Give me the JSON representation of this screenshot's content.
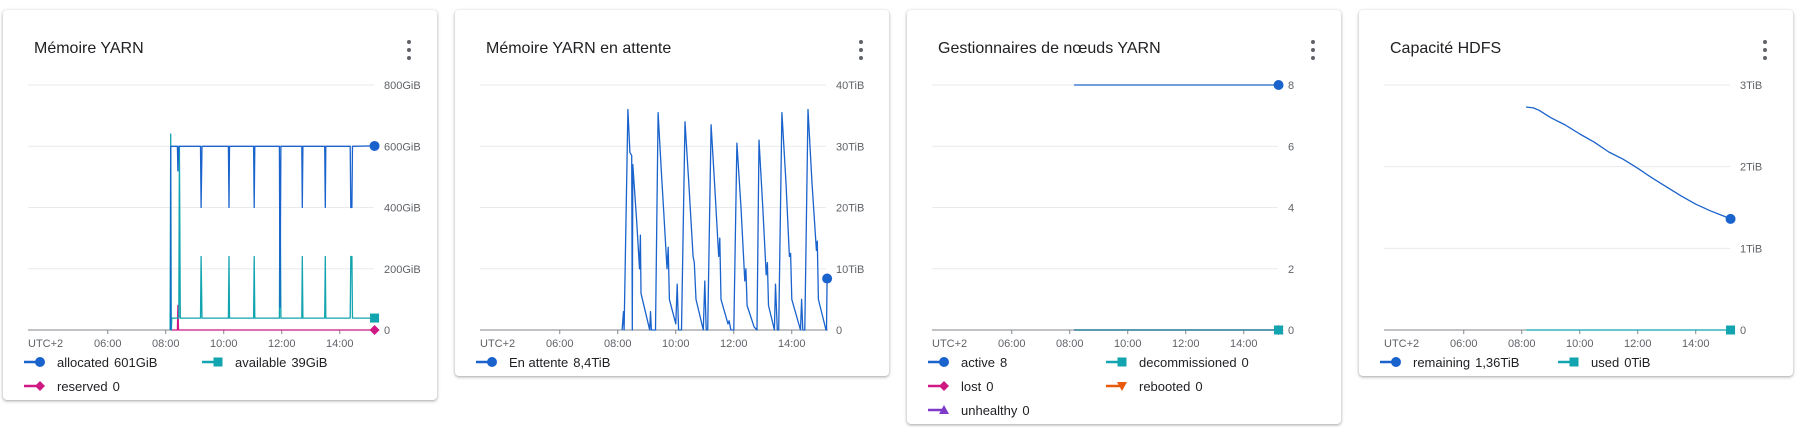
{
  "chart_data": [
    {
      "type": "line",
      "title": "Mémoire YARN",
      "timezone_label": "UTC+2",
      "xlim": [
        3.25,
        15.25
      ],
      "x_ticks": [
        {
          "v": 6,
          "label": "06:00"
        },
        {
          "v": 8,
          "label": "08:00"
        },
        {
          "v": 10,
          "label": "10:00"
        },
        {
          "v": 12,
          "label": "12:00"
        },
        {
          "v": 14,
          "label": "14:00"
        }
      ],
      "ylim": [
        0,
        800
      ],
      "y_ticks": [
        {
          "v": 0,
          "label": "0"
        },
        {
          "v": 200,
          "label": "200GiB"
        },
        {
          "v": 400,
          "label": "400GiB"
        },
        {
          "v": 600,
          "label": "600GiB"
        },
        {
          "v": 800,
          "label": "800GiB"
        }
      ],
      "series": [
        {
          "name": "allocated",
          "value": "601GiB",
          "color": "#1a63cc",
          "marker": "circle",
          "points": [
            [
              8.17,
              0
            ],
            [
              8.17,
              600
            ],
            [
              8.4,
              600
            ],
            [
              8.42,
              520
            ],
            [
              8.45,
              600
            ],
            [
              9.2,
              600
            ],
            [
              9.22,
              400
            ],
            [
              9.25,
              600
            ],
            [
              10.16,
              600
            ],
            [
              10.18,
              400
            ],
            [
              10.2,
              600
            ],
            [
              11.03,
              600
            ],
            [
              11.05,
              400
            ],
            [
              11.07,
              600
            ],
            [
              11.92,
              600
            ],
            [
              11.94,
              75
            ],
            [
              11.97,
              600
            ],
            [
              12.69,
              600
            ],
            [
              12.71,
              400
            ],
            [
              12.73,
              600
            ],
            [
              13.48,
              600
            ],
            [
              13.5,
              400
            ],
            [
              13.52,
              600
            ],
            [
              14.36,
              600
            ],
            [
              14.38,
              400
            ],
            [
              14.42,
              400
            ],
            [
              14.44,
              600
            ],
            [
              15.2,
              601
            ]
          ]
        },
        {
          "name": "available",
          "value": "39GiB",
          "color": "#12a4af",
          "marker": "square",
          "points": [
            [
              8.15,
              0
            ],
            [
              8.17,
              640
            ],
            [
              8.19,
              0
            ],
            [
              8.21,
              39
            ],
            [
              8.45,
              39
            ],
            [
              8.47,
              600
            ],
            [
              8.5,
              39
            ],
            [
              9.2,
              39
            ],
            [
              9.22,
              240
            ],
            [
              9.25,
              39
            ],
            [
              10.16,
              39
            ],
            [
              10.18,
              240
            ],
            [
              10.2,
              39
            ],
            [
              11.03,
              39
            ],
            [
              11.05,
              240
            ],
            [
              11.07,
              39
            ],
            [
              11.92,
              39
            ],
            [
              11.94,
              555
            ],
            [
              11.97,
              39
            ],
            [
              12.69,
              39
            ],
            [
              12.71,
              240
            ],
            [
              12.73,
              39
            ],
            [
              13.48,
              39
            ],
            [
              13.5,
              240
            ],
            [
              13.52,
              39
            ],
            [
              14.36,
              39
            ],
            [
              14.38,
              240
            ],
            [
              14.42,
              240
            ],
            [
              14.44,
              39
            ],
            [
              15.2,
              39
            ]
          ]
        },
        {
          "name": "reserved",
          "value": "0",
          "color": "#d01884",
          "marker": "diamond",
          "points": [
            [
              8.17,
              0
            ],
            [
              8.4,
              0
            ],
            [
              8.42,
              80
            ],
            [
              8.44,
              0
            ],
            [
              15.2,
              0
            ]
          ]
        }
      ]
    },
    {
      "type": "line",
      "title": "Mémoire YARN en attente",
      "timezone_label": "UTC+2",
      "xlim": [
        3.25,
        15.25
      ],
      "x_ticks": [
        {
          "v": 6,
          "label": "06:00"
        },
        {
          "v": 8,
          "label": "08:00"
        },
        {
          "v": 10,
          "label": "10:00"
        },
        {
          "v": 12,
          "label": "12:00"
        },
        {
          "v": 14,
          "label": "14:00"
        }
      ],
      "ylim": [
        0,
        40
      ],
      "y_ticks": [
        {
          "v": 0,
          "label": "0"
        },
        {
          "v": 10,
          "label": "10TiB"
        },
        {
          "v": 20,
          "label": "20TiB"
        },
        {
          "v": 30,
          "label": "30TiB"
        },
        {
          "v": 40,
          "label": "40TiB"
        }
      ],
      "series": [
        {
          "name": "En attente",
          "value": "8,4TiB",
          "color": "#1a63cc",
          "marker": "circle",
          "points": [
            [
              8.15,
              0
            ],
            [
              8.2,
              3
            ],
            [
              8.22,
              0
            ],
            [
              8.35,
              36
            ],
            [
              8.42,
              29
            ],
            [
              8.48,
              28.5
            ],
            [
              8.5,
              0
            ],
            [
              8.52,
              27
            ],
            [
              8.65,
              18
            ],
            [
              8.75,
              10
            ],
            [
              8.78,
              15.5
            ],
            [
              8.8,
              6
            ],
            [
              9.0,
              2
            ],
            [
              9.1,
              0
            ],
            [
              9.13,
              3
            ],
            [
              9.16,
              0
            ],
            [
              9.3,
              0
            ],
            [
              9.39,
              35.5
            ],
            [
              9.5,
              26
            ],
            [
              9.6,
              18
            ],
            [
              9.7,
              10
            ],
            [
              9.74,
              13.5
            ],
            [
              9.78,
              5
            ],
            [
              10.0,
              1
            ],
            [
              10.05,
              7.5
            ],
            [
              10.1,
              0
            ],
            [
              10.2,
              0
            ],
            [
              10.32,
              34
            ],
            [
              10.45,
              24
            ],
            [
              10.6,
              12
            ],
            [
              10.64,
              11
            ],
            [
              10.7,
              5
            ],
            [
              10.95,
              0
            ],
            [
              11.0,
              8
            ],
            [
              11.05,
              0
            ],
            [
              11.1,
              0
            ],
            [
              11.22,
              33.5
            ],
            [
              11.35,
              23
            ],
            [
              11.48,
              12
            ],
            [
              11.52,
              15
            ],
            [
              11.56,
              5
            ],
            [
              11.8,
              1
            ],
            [
              11.84,
              1.5
            ],
            [
              11.9,
              0
            ],
            [
              12.0,
              0
            ],
            [
              12.11,
              30.5
            ],
            [
              12.25,
              20
            ],
            [
              12.38,
              8
            ],
            [
              12.42,
              10
            ],
            [
              12.46,
              4
            ],
            [
              12.7,
              0.5
            ],
            [
              12.8,
              0
            ],
            [
              12.87,
              31
            ],
            [
              13.0,
              20
            ],
            [
              13.12,
              9
            ],
            [
              13.16,
              11
            ],
            [
              13.2,
              4
            ],
            [
              13.4,
              0
            ],
            [
              13.44,
              7.5
            ],
            [
              13.5,
              0
            ],
            [
              13.55,
              0
            ],
            [
              13.66,
              35.5
            ],
            [
              13.8,
              24
            ],
            [
              13.92,
              12
            ],
            [
              13.96,
              12.5
            ],
            [
              14.0,
              5
            ],
            [
              14.3,
              0
            ],
            [
              14.34,
              5
            ],
            [
              14.38,
              0
            ],
            [
              14.45,
              0
            ],
            [
              14.56,
              36
            ],
            [
              14.7,
              24
            ],
            [
              14.85,
              13
            ],
            [
              14.88,
              14.5
            ],
            [
              14.92,
              5
            ],
            [
              15.18,
              0
            ],
            [
              15.2,
              0
            ],
            [
              15.22,
              8.4
            ]
          ]
        }
      ]
    },
    {
      "type": "line",
      "title": "Gestionnaires de nœuds YARN",
      "timezone_label": "UTC+2",
      "xlim": [
        3.25,
        15.25
      ],
      "x_ticks": [
        {
          "v": 6,
          "label": "06:00"
        },
        {
          "v": 8,
          "label": "08:00"
        },
        {
          "v": 10,
          "label": "10:00"
        },
        {
          "v": 12,
          "label": "12:00"
        },
        {
          "v": 14,
          "label": "14:00"
        }
      ],
      "ylim": [
        0,
        8
      ],
      "y_ticks": [
        {
          "v": 0,
          "label": "0"
        },
        {
          "v": 2,
          "label": "2"
        },
        {
          "v": 4,
          "label": "4"
        },
        {
          "v": 6,
          "label": "6"
        },
        {
          "v": 8,
          "label": "8"
        }
      ],
      "series": [
        {
          "name": "active",
          "value": "8",
          "color": "#1a63cc",
          "marker": "circle",
          "points": [
            [
              8.15,
              8
            ],
            [
              15.2,
              8
            ]
          ]
        },
        {
          "name": "decommissioned",
          "value": "0",
          "color": "#12a4af",
          "marker": "square",
          "points": [
            [
              8.15,
              0
            ],
            [
              15.2,
              0
            ]
          ]
        },
        {
          "name": "lost",
          "value": "0",
          "color": "#d01884",
          "marker": "diamond",
          "points": [
            [
              8.15,
              0
            ],
            [
              15.2,
              0
            ]
          ]
        },
        {
          "name": "rebooted",
          "value": "0",
          "color": "#e8590c",
          "marker": "triangle-down",
          "points": [
            [
              8.15,
              0
            ],
            [
              15.2,
              0
            ]
          ]
        },
        {
          "name": "unhealthy",
          "value": "0",
          "color": "#7e3bc8",
          "marker": "triangle-up",
          "points": [
            [
              8.15,
              0
            ],
            [
              15.2,
              0
            ]
          ]
        }
      ]
    },
    {
      "type": "line",
      "title": "Capacité HDFS",
      "timezone_label": "UTC+2",
      "xlim": [
        3.25,
        15.25
      ],
      "x_ticks": [
        {
          "v": 6,
          "label": "06:00"
        },
        {
          "v": 8,
          "label": "08:00"
        },
        {
          "v": 10,
          "label": "10:00"
        },
        {
          "v": 12,
          "label": "12:00"
        },
        {
          "v": 14,
          "label": "14:00"
        }
      ],
      "ylim": [
        0,
        3
      ],
      "y_ticks": [
        {
          "v": 0,
          "label": "0"
        },
        {
          "v": 1,
          "label": "1TiB"
        },
        {
          "v": 2,
          "label": "2TiB"
        },
        {
          "v": 3,
          "label": "3TiB"
        }
      ],
      "series": [
        {
          "name": "remaining",
          "value": "1,36TiB",
          "color": "#1a63cc",
          "marker": "circle",
          "points": [
            [
              8.15,
              2.73
            ],
            [
              8.4,
              2.72
            ],
            [
              8.6,
              2.69
            ],
            [
              9.0,
              2.6
            ],
            [
              9.5,
              2.51
            ],
            [
              10.0,
              2.4
            ],
            [
              10.5,
              2.3
            ],
            [
              11.0,
              2.18
            ],
            [
              11.5,
              2.09
            ],
            [
              12.0,
              1.98
            ],
            [
              12.5,
              1.86
            ],
            [
              13.0,
              1.75
            ],
            [
              13.5,
              1.64
            ],
            [
              14.0,
              1.54
            ],
            [
              14.5,
              1.46
            ],
            [
              15.0,
              1.39
            ],
            [
              15.2,
              1.36
            ]
          ]
        },
        {
          "name": "used",
          "value": "0TiB",
          "color": "#12a4af",
          "marker": "square",
          "points": [
            [
              8.15,
              0
            ],
            [
              15.2,
              0
            ]
          ]
        }
      ]
    }
  ]
}
